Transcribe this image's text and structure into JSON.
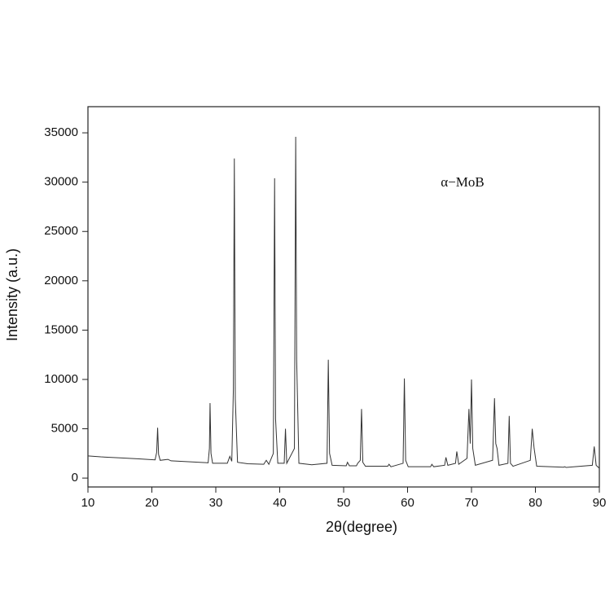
{
  "chart_data": {
    "type": "line",
    "x_label": "2θ(degree)",
    "y_label": "Intensity (a.u.)",
    "annotation": "α−MoB",
    "color": "#333333",
    "xlim": [
      10,
      90
    ],
    "ylim": [
      -900,
      37650
    ],
    "xticks": [
      10,
      20,
      30,
      40,
      50,
      60,
      70,
      80,
      90
    ],
    "yticks": [
      0,
      5000,
      10000,
      15000,
      20000,
      25000,
      30000,
      35000
    ],
    "x": [
      10,
      12,
      15,
      18,
      20.5,
      20.75,
      20.9,
      21.05,
      21.3,
      22.5,
      23,
      26,
      28.8,
      29.0,
      29.1,
      29.25,
      29.5,
      31.8,
      32.2,
      32.5,
      32.75,
      32.9,
      33.05,
      33.4,
      35,
      37.5,
      37.9,
      38.3,
      39.0,
      39.2,
      39.35,
      39.7,
      40.7,
      40.9,
      41.1,
      42.3,
      42.5,
      42.65,
      43.0,
      45,
      47.4,
      47.6,
      47.8,
      48.2,
      50.4,
      50.6,
      50.9,
      52.0,
      52.2,
      52.6,
      52.8,
      53.0,
      53.4,
      56.9,
      57.1,
      57.4,
      59.3,
      59.5,
      59.7,
      60.1,
      63.6,
      63.8,
      64.1,
      65.8,
      66.0,
      66.3,
      67.5,
      67.7,
      68.0,
      69.3,
      69.6,
      69.8,
      70.0,
      70.2,
      70.6,
      73.3,
      73.6,
      73.8,
      74.0,
      74.3,
      75.7,
      75.9,
      76.1,
      76.5,
      79.2,
      79.5,
      79.8,
      80.2,
      84.4,
      84.6,
      84.8,
      88.9,
      89.2,
      89.5,
      90
    ],
    "values": [
      2250,
      2150,
      2050,
      1950,
      1850,
      2600,
      5100,
      2400,
      1800,
      1900,
      1750,
      1650,
      1550,
      3000,
      7600,
      2500,
      1500,
      1500,
      2200,
      1700,
      9000,
      32400,
      8000,
      1600,
      1450,
      1400,
      1800,
      1400,
      2500,
      30400,
      6000,
      1500,
      1500,
      5000,
      1500,
      3000,
      34600,
      12000,
      1500,
      1350,
      1500,
      12000,
      2500,
      1300,
      1250,
      1600,
      1250,
      1250,
      1500,
      1800,
      7000,
      1600,
      1200,
      1200,
      1400,
      1150,
      1500,
      10100,
      1800,
      1150,
      1150,
      1400,
      1150,
      1300,
      2100,
      1300,
      1500,
      2700,
      1400,
      2000,
      7000,
      3500,
      10000,
      3000,
      1300,
      1800,
      8100,
      3500,
      3000,
      1300,
      1500,
      6300,
      1500,
      1200,
      1800,
      5000,
      3000,
      1200,
      1100,
      1150,
      1080,
      1300,
      3200,
      1300,
      1000
    ]
  }
}
